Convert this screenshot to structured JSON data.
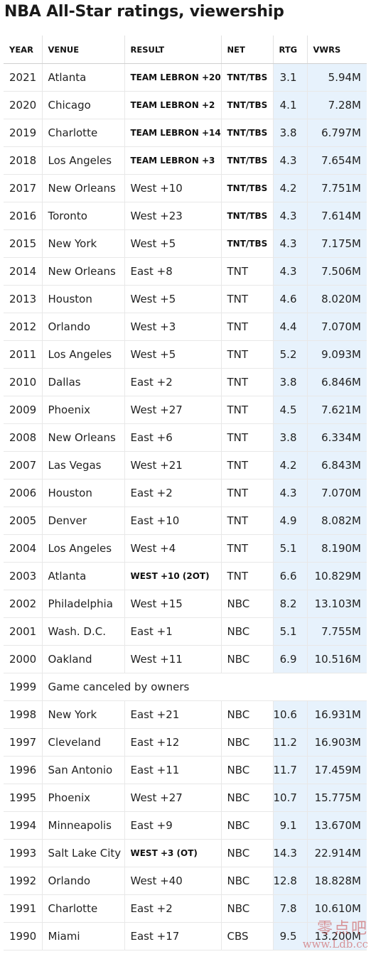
{
  "title": "NBA All-Star ratings, viewership",
  "headers": {
    "year": "YEAR",
    "venue": "VENUE",
    "result": "RESULT",
    "net": "NET",
    "rtg": "RTG",
    "vwrs": "VWRS"
  },
  "rows": [
    {
      "year": "2021",
      "venue": "Atlanta",
      "result": "TEAM LEBRON +20",
      "net": "TNT/TBS",
      "rtg": "3.1",
      "vwrs": "5.94M"
    },
    {
      "year": "2020",
      "venue": "Chicago",
      "result": "TEAM LEBRON +2",
      "net": "TNT/TBS",
      "rtg": "4.1",
      "vwrs": "7.28M"
    },
    {
      "year": "2019",
      "venue": "Charlotte",
      "result": "TEAM LEBRON +14",
      "net": "TNT/TBS",
      "rtg": "3.8",
      "vwrs": "6.797M"
    },
    {
      "year": "2018",
      "venue": "Los Angeles",
      "result": "TEAM LEBRON +3",
      "net": "TNT/TBS",
      "rtg": "4.3",
      "vwrs": "7.654M"
    },
    {
      "year": "2017",
      "venue": "New Orleans",
      "result": "West +10",
      "net": "TNT/TBS",
      "rtg": "4.2",
      "vwrs": "7.751M"
    },
    {
      "year": "2016",
      "venue": "Toronto",
      "result": "West +23",
      "net": "TNT/TBS",
      "rtg": "4.3",
      "vwrs": "7.614M"
    },
    {
      "year": "2015",
      "venue": "New York",
      "result": "West +5",
      "net": "TNT/TBS",
      "rtg": "4.3",
      "vwrs": "7.175M"
    },
    {
      "year": "2014",
      "venue": "New Orleans",
      "result": "East +8",
      "net": "TNT",
      "rtg": "4.3",
      "vwrs": "7.506M"
    },
    {
      "year": "2013",
      "venue": "Houston",
      "result": "West +5",
      "net": "TNT",
      "rtg": "4.6",
      "vwrs": "8.020M"
    },
    {
      "year": "2012",
      "venue": "Orlando",
      "result": "West +3",
      "net": "TNT",
      "rtg": "4.4",
      "vwrs": "7.070M"
    },
    {
      "year": "2011",
      "venue": "Los Angeles",
      "result": "West +5",
      "net": "TNT",
      "rtg": "5.2",
      "vwrs": "9.093M"
    },
    {
      "year": "2010",
      "venue": "Dallas",
      "result": "East +2",
      "net": "TNT",
      "rtg": "3.8",
      "vwrs": "6.846M"
    },
    {
      "year": "2009",
      "venue": "Phoenix",
      "result": "West +27",
      "net": "TNT",
      "rtg": "4.5",
      "vwrs": "7.621M"
    },
    {
      "year": "2008",
      "venue": "New Orleans",
      "result": "East +6",
      "net": "TNT",
      "rtg": "3.8",
      "vwrs": "6.334M"
    },
    {
      "year": "2007",
      "venue": "Las Vegas",
      "result": "West +21",
      "net": "TNT",
      "rtg": "4.2",
      "vwrs": "6.843M"
    },
    {
      "year": "2006",
      "venue": "Houston",
      "result": "East +2",
      "net": "TNT",
      "rtg": "4.3",
      "vwrs": "7.070M"
    },
    {
      "year": "2005",
      "venue": "Denver",
      "result": "East +10",
      "net": "TNT",
      "rtg": "4.9",
      "vwrs": "8.082M"
    },
    {
      "year": "2004",
      "venue": "Los Angeles",
      "result": "West +4",
      "net": "TNT",
      "rtg": "5.1",
      "vwrs": "8.190M"
    },
    {
      "year": "2003",
      "venue": "Atlanta",
      "result": "WEST +10 (2OT)",
      "net": "TNT",
      "rtg": "6.6",
      "vwrs": "10.829M"
    },
    {
      "year": "2002",
      "venue": "Philadelphia",
      "result": "West +15",
      "net": "NBC",
      "rtg": "8.2",
      "vwrs": "13.103M"
    },
    {
      "year": "2001",
      "venue": "Wash. D.C.",
      "result": "East +1",
      "net": "NBC",
      "rtg": "5.1",
      "vwrs": "7.755M"
    },
    {
      "year": "2000",
      "venue": "Oakland",
      "result": "West +11",
      "net": "NBC",
      "rtg": "6.9",
      "vwrs": "10.516M"
    },
    {
      "year": "1999",
      "venue": "Game canceled by owners",
      "result": "",
      "net": "",
      "rtg": "",
      "vwrs": ""
    },
    {
      "year": "1998",
      "venue": "New York",
      "result": "East +21",
      "net": "NBC",
      "rtg": "10.6",
      "vwrs": "16.931M"
    },
    {
      "year": "1997",
      "venue": "Cleveland",
      "result": "East +12",
      "net": "NBC",
      "rtg": "11.2",
      "vwrs": "16.903M"
    },
    {
      "year": "1996",
      "venue": "San Antonio",
      "result": "East +11",
      "net": "NBC",
      "rtg": "11.7",
      "vwrs": "17.459M"
    },
    {
      "year": "1995",
      "venue": "Phoenix",
      "result": "West +27",
      "net": "NBC",
      "rtg": "10.7",
      "vwrs": "15.775M"
    },
    {
      "year": "1994",
      "venue": "Minneapolis",
      "result": "East +9",
      "net": "NBC",
      "rtg": "9.1",
      "vwrs": "13.670M"
    },
    {
      "year": "1993",
      "venue": "Salt Lake City",
      "result": "WEST +3 (OT)",
      "net": "NBC",
      "rtg": "14.3",
      "vwrs": "22.914M"
    },
    {
      "year": "1992",
      "venue": "Orlando",
      "result": "West +40",
      "net": "NBC",
      "rtg": "12.8",
      "vwrs": "18.828M"
    },
    {
      "year": "1991",
      "venue": "Charlotte",
      "result": "East +2",
      "net": "NBC",
      "rtg": "7.8",
      "vwrs": "10.610M"
    },
    {
      "year": "1990",
      "venue": "Miami",
      "result": "East +17",
      "net": "CBS",
      "rtg": "9.5",
      "vwrs": "13.200M"
    }
  ],
  "bold_results": [
    "TEAM LEBRON +20",
    "TEAM LEBRON +2",
    "TEAM LEBRON +14",
    "TEAM LEBRON +3",
    "WEST +10 (2OT)",
    "WEST +3 (OT)"
  ],
  "bold_net": [
    "TNT/TBS"
  ],
  "watermark": {
    "cn": "零点吧",
    "url": "www.Ldb.cc"
  }
}
